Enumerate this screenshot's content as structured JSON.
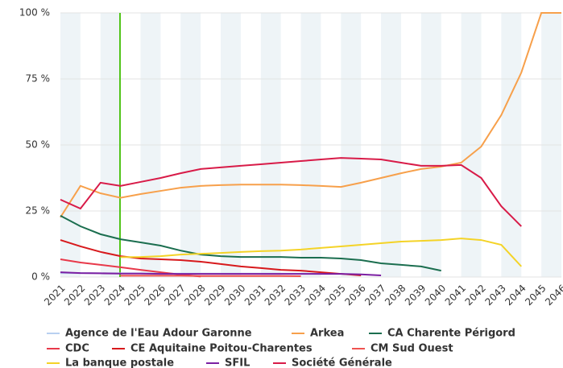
{
  "chart_data": {
    "type": "line",
    "categories": [
      "2021",
      "2022",
      "2023",
      "2024",
      "2025",
      "2026",
      "2027",
      "2028",
      "2029",
      "2030",
      "2031",
      "2032",
      "2033",
      "2034",
      "2035",
      "2036",
      "2037",
      "2038",
      "2039",
      "2040",
      "2041",
      "2042",
      "2043",
      "2044",
      "2045",
      "2046"
    ],
    "ylim": [
      0,
      100
    ],
    "yticks": [
      {
        "value": 0,
        "label": "0 %"
      },
      {
        "value": 25,
        "label": "25 %"
      },
      {
        "value": 50,
        "label": "50 %"
      },
      {
        "value": 75,
        "label": "75 %"
      },
      {
        "value": 100,
        "label": "100 %"
      }
    ],
    "grid": true,
    "legend": "bottom",
    "series": [
      {
        "name": "Agence de l'Eau Adour Garonne",
        "color": "#b8d0f0",
        "values": [
          1.5,
          1.5,
          1.4,
          1.4,
          1.4,
          1.3,
          1.3,
          1.3,
          1.3,
          1.3,
          1.3,
          1.3,
          1.3,
          1.2,
          1.2,
          null,
          null,
          null,
          null,
          null,
          null,
          null,
          null,
          null,
          null,
          null
        ]
      },
      {
        "name": "Arkea",
        "color": "#f7a04b",
        "values": [
          22.6,
          34.5,
          31.7,
          30,
          31.4,
          32.6,
          33.8,
          34.5,
          34.8,
          35,
          35,
          35,
          34.8,
          34.5,
          34.1,
          35.7,
          37.5,
          39.3,
          40.9,
          41.8,
          43.3,
          49.4,
          61.3,
          77.4,
          100,
          100
        ]
      },
      {
        "name": "CA Charente Périgord",
        "color": "#1b6e4f",
        "values": [
          23.2,
          19.2,
          16.2,
          14.3,
          13.1,
          11.9,
          10,
          8.5,
          7.9,
          7.6,
          7.6,
          7.6,
          7.3,
          7.3,
          7,
          6.4,
          5.2,
          4.6,
          4,
          2.4,
          null,
          null,
          null,
          null,
          null,
          null
        ]
      },
      {
        "name": "CDC",
        "color": "#e8394a",
        "values": [
          6.7,
          5.5,
          4.6,
          3.7,
          2.7,
          1.8,
          0.9,
          0.2,
          null,
          null,
          null,
          null,
          null,
          null,
          null,
          null,
          null,
          null,
          null,
          null,
          null,
          null,
          null,
          null,
          null,
          null
        ]
      },
      {
        "name": "CE Aquitaine Poitou-Charentes",
        "color": "#d7191c",
        "values": [
          14,
          11.6,
          9.5,
          7.9,
          7,
          6.7,
          6.4,
          5.8,
          4.9,
          4,
          3.4,
          2.7,
          2.4,
          1.8,
          1.2,
          0.6,
          null,
          null,
          null,
          null,
          null,
          null,
          null,
          null,
          null,
          null
        ]
      },
      {
        "name": "CM Sud Ouest",
        "color": "#ef5350",
        "values": [
          null,
          null,
          null,
          0.5,
          0.5,
          0.5,
          0.5,
          0.4,
          0.4,
          0.4,
          0.4,
          0.4,
          0.3,
          null,
          null,
          null,
          null,
          null,
          null,
          null,
          null,
          null,
          null,
          null,
          null,
          null
        ]
      },
      {
        "name": "La banque postale",
        "color": "#f4d327",
        "values": [
          null,
          null,
          null,
          7.5,
          7.6,
          7.9,
          8.5,
          8.8,
          9.1,
          9.5,
          9.8,
          10,
          10.4,
          11,
          11.6,
          12.2,
          12.8,
          13.4,
          13.7,
          14,
          14.6,
          14,
          12.2,
          4,
          null,
          null
        ]
      },
      {
        "name": "SFIL",
        "color": "#7b1fa2",
        "values": [
          1.8,
          1.5,
          1.4,
          1.3,
          1.3,
          1.2,
          1.2,
          1.2,
          1.2,
          1.2,
          1.2,
          1.2,
          1.2,
          1.2,
          1.2,
          1,
          0.6,
          null,
          null,
          null,
          null,
          null,
          null,
          null,
          null,
          null
        ]
      },
      {
        "name": "Société Générale",
        "color": "#d81b48",
        "values": [
          29.3,
          25.9,
          35.7,
          34.5,
          36,
          37.5,
          39.3,
          40.9,
          41.5,
          42.1,
          42.7,
          43.3,
          43.9,
          44.5,
          45.1,
          44.8,
          44.5,
          43.3,
          42.1,
          42.1,
          42.4,
          37.5,
          26.8,
          19.2,
          null,
          null
        ]
      }
    ]
  }
}
